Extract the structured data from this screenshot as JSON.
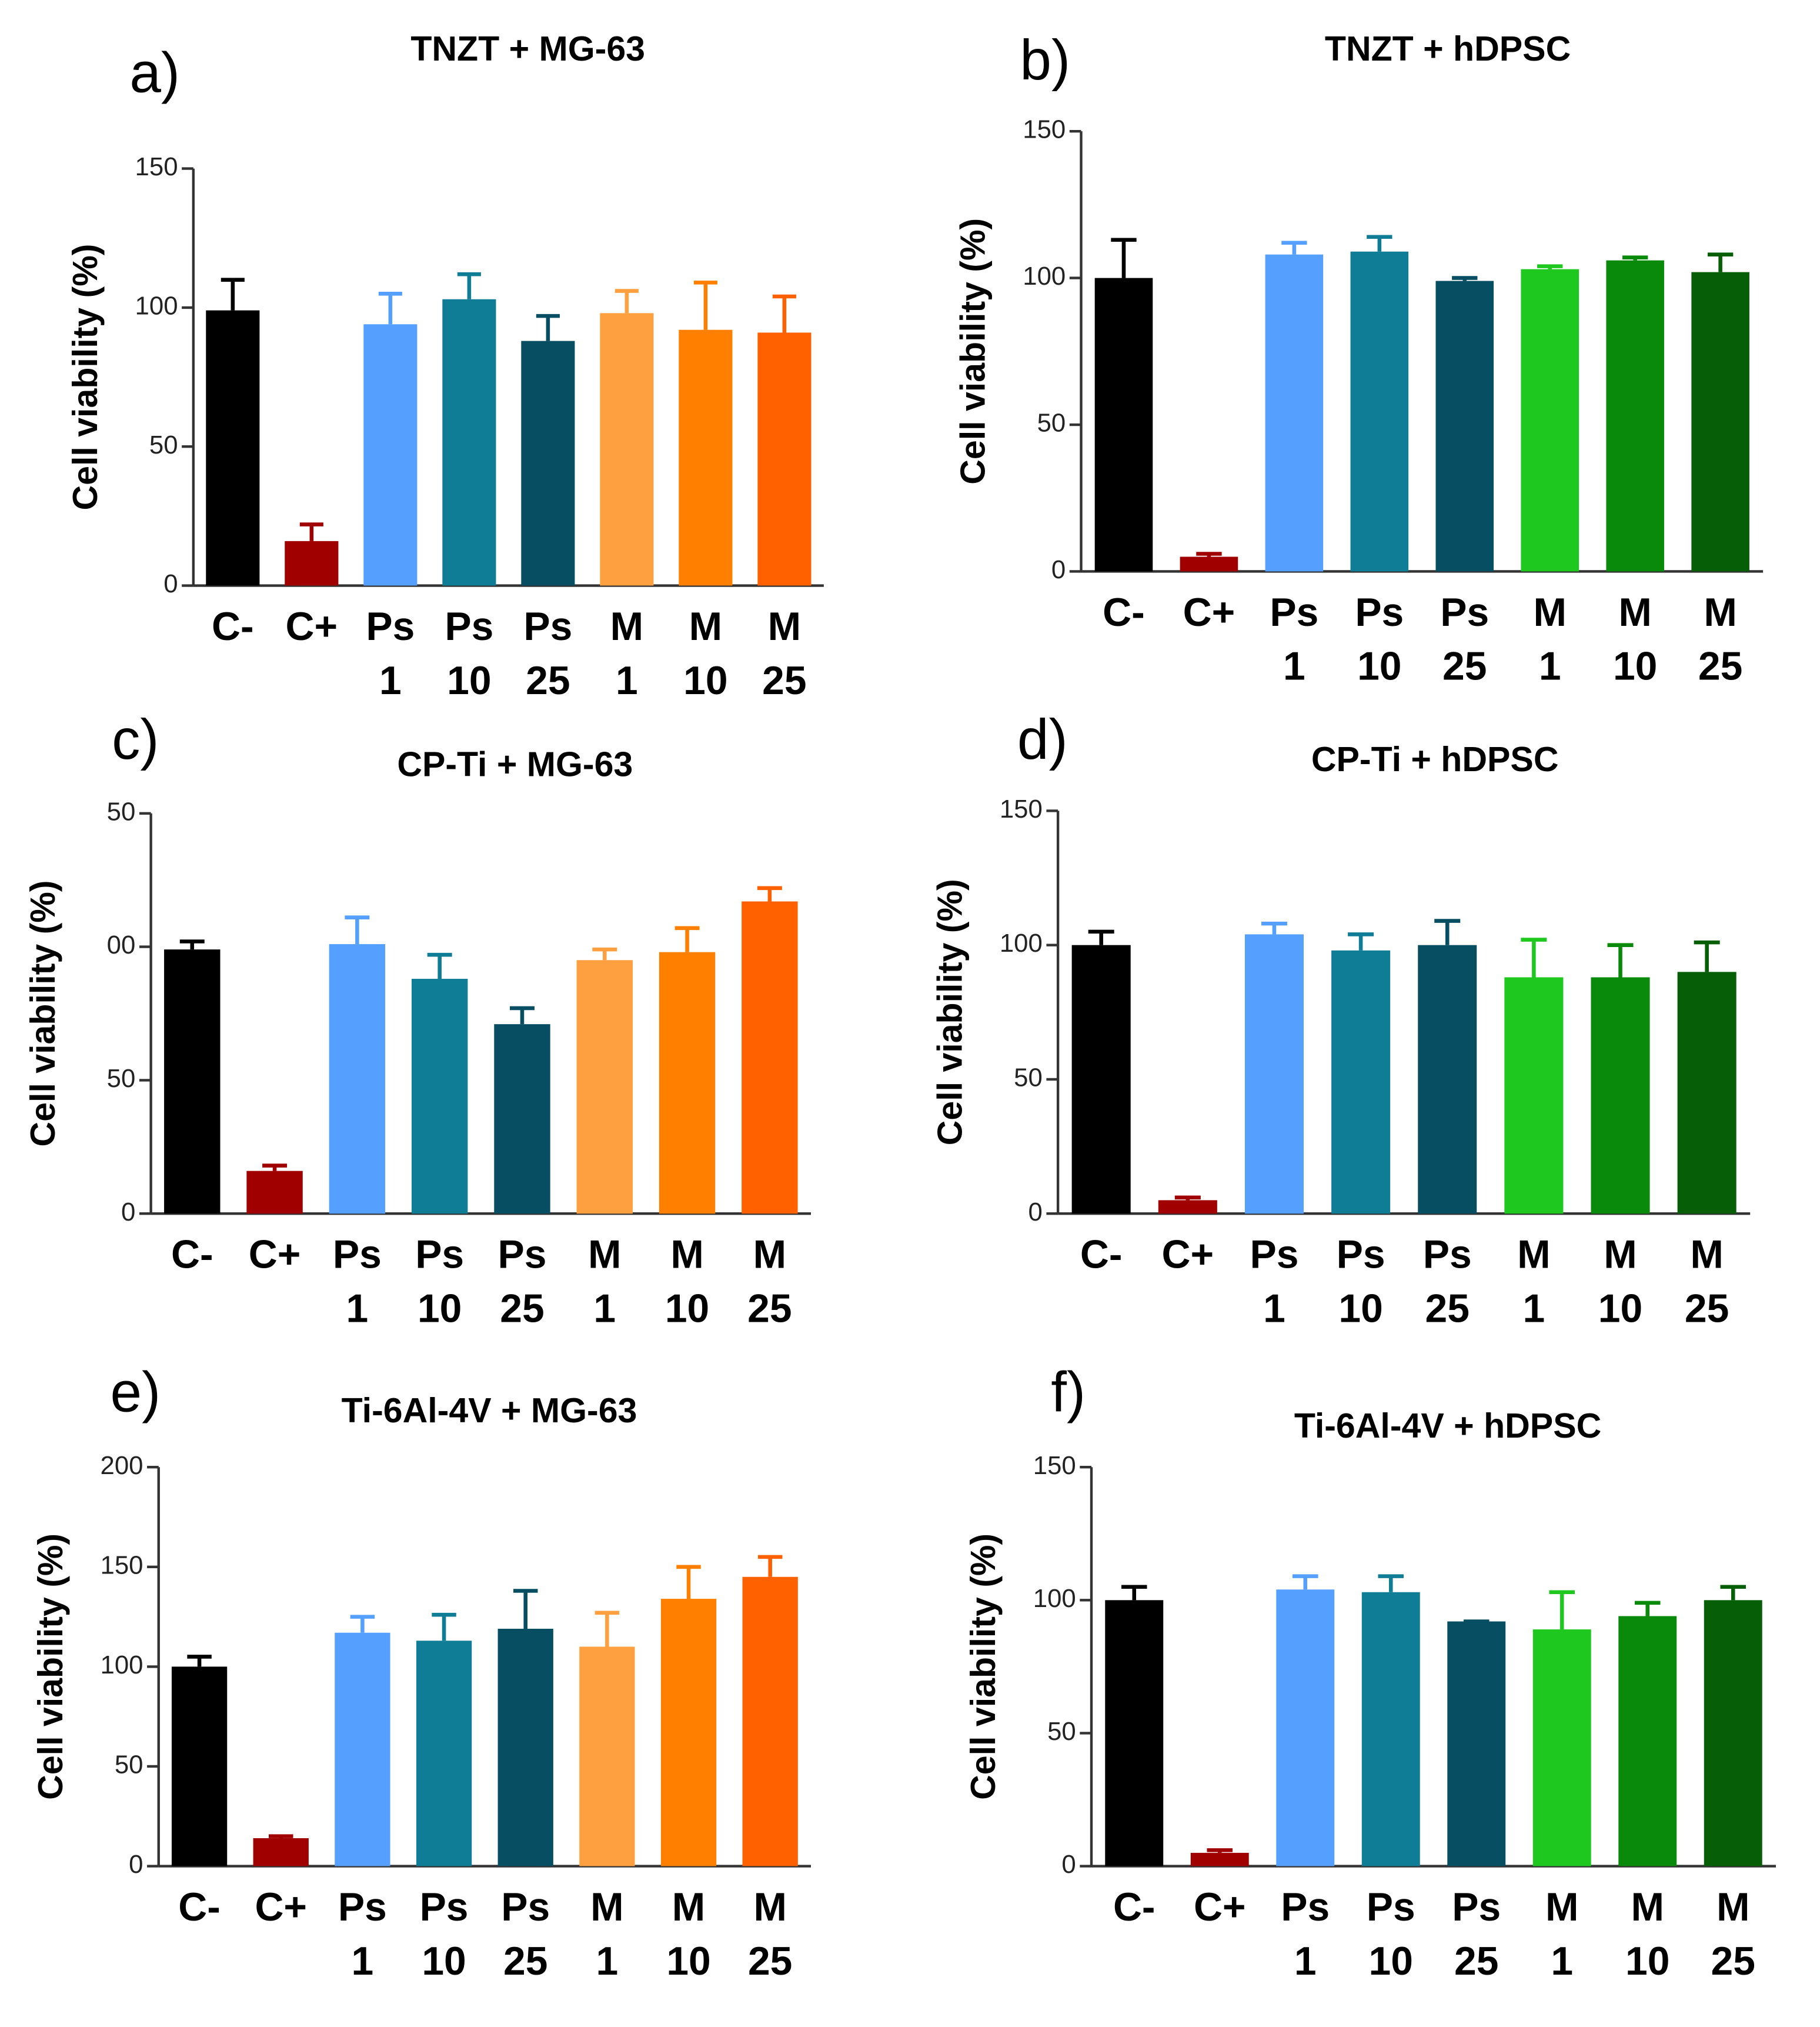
{
  "chart_data": [
    {
      "type": "bar",
      "panel": "a)",
      "title": "TNZT + MG-63",
      "y_label": "Cell viability (%)",
      "categories": [
        "C-",
        "C+",
        "Ps 1",
        "Ps 10",
        "Ps 25",
        "M 1",
        "M 10",
        "M 25"
      ],
      "values": [
        99,
        16,
        94,
        103,
        88,
        98,
        92,
        91
      ],
      "errors": [
        11,
        6,
        11,
        9,
        9,
        8,
        17,
        13
      ],
      "colors": [
        "#000000",
        "#a00000",
        "#55a0ff",
        "#107d96",
        "#074e63",
        "#ffa040",
        "#ff8000",
        "#ff6000"
      ],
      "ylim": [
        0,
        150
      ],
      "yticks": [
        0,
        50,
        100,
        150
      ]
    },
    {
      "type": "bar",
      "panel": "b)",
      "title": "TNZT + hDPSC",
      "y_label": "Cell viability (%)",
      "categories": [
        "C-",
        "C+",
        "Ps 1",
        "Ps 10",
        "Ps 25",
        "M 1",
        "M 10",
        "M 25"
      ],
      "values": [
        100,
        5,
        108,
        109,
        99,
        103,
        106,
        102
      ],
      "errors": [
        13,
        1,
        4,
        5,
        1,
        1,
        1,
        6
      ],
      "colors": [
        "#000000",
        "#a00000",
        "#55a0ff",
        "#107d96",
        "#074e63",
        "#1ec81e",
        "#0a8a0a",
        "#065f06"
      ],
      "ylim": [
        0,
        150
      ],
      "yticks": [
        0,
        50,
        100,
        150
      ]
    },
    {
      "type": "bar",
      "panel": "c)",
      "title": "CP-Ti + MG-63",
      "y_label": "Cell viability  (%)",
      "categories": [
        "C-",
        "C+",
        "Ps 1",
        "Ps 10",
        "Ps 25",
        "M 1",
        "M 10",
        "M 25"
      ],
      "values": [
        99,
        16,
        101,
        88,
        71,
        95,
        98,
        117
      ],
      "errors": [
        3,
        2,
        10,
        9,
        6,
        4,
        9,
        5
      ],
      "colors": [
        "#000000",
        "#a00000",
        "#55a0ff",
        "#107d96",
        "#074e63",
        "#ffa040",
        "#ff8000",
        "#ff6000"
      ],
      "ylim": [
        0,
        150
      ],
      "yticks": [
        0,
        50,
        {
          "value": 100,
          "label": "00"
        },
        {
          "value": 150,
          "label": "50"
        }
      ]
    },
    {
      "type": "bar",
      "panel": "d)",
      "title": "CP-Ti + hDPSC",
      "y_label": "Cell viability  (%)",
      "categories": [
        "C-",
        "C+",
        "Ps 1",
        "Ps 10",
        "Ps 25",
        "M 1",
        "M 10",
        "M 25"
      ],
      "values": [
        100,
        5,
        104,
        98,
        100,
        88,
        88,
        90
      ],
      "errors": [
        5,
        1,
        4,
        6,
        9,
        14,
        12,
        11
      ],
      "colors": [
        "#000000",
        "#a00000",
        "#55a0ff",
        "#107d96",
        "#074e63",
        "#1ec81e",
        "#0a8a0a",
        "#065f06"
      ],
      "ylim": [
        0,
        150
      ],
      "yticks": [
        0,
        50,
        {
          "value": 100,
          "label": "100"
        },
        150
      ]
    },
    {
      "type": "bar",
      "panel": "e)",
      "title": "Ti-6Al-4V  + MG-63",
      "y_label": "Cell viability  (%)",
      "categories": [
        "C-",
        "C+",
        "Ps 1",
        "Ps 10",
        "Ps 25",
        "M 1",
        "M 10",
        "M 25"
      ],
      "values": [
        100,
        14,
        117,
        113,
        119,
        110,
        134,
        145
      ],
      "errors": [
        5,
        1,
        8,
        13,
        19,
        17,
        16,
        10
      ],
      "colors": [
        "#000000",
        "#a00000",
        "#55a0ff",
        "#107d96",
        "#074e63",
        "#ffa040",
        "#ff8000",
        "#ff6000"
      ],
      "ylim": [
        0,
        200
      ],
      "yticks": [
        0,
        50,
        100,
        150,
        200
      ]
    },
    {
      "type": "bar",
      "panel": "f)",
      "title": "Ti-6Al-4V  + hDPSC",
      "y_label": "Cell viability (%)",
      "categories": [
        "C-",
        "C+",
        "Ps 1",
        "Ps 10",
        "Ps 25",
        "M 1",
        "M 10",
        "M 25"
      ],
      "values": [
        100,
        5,
        104,
        103,
        92,
        89,
        94,
        100
      ],
      "errors": [
        5,
        1,
        5,
        6,
        0,
        14,
        5,
        5
      ],
      "colors": [
        "#000000",
        "#a00000",
        "#55a0ff",
        "#107d96",
        "#074e63",
        "#1ec81e",
        "#0a8a0a",
        "#065f06"
      ],
      "ylim": [
        0,
        150
      ],
      "yticks": [
        0,
        50,
        100,
        150
      ]
    }
  ]
}
